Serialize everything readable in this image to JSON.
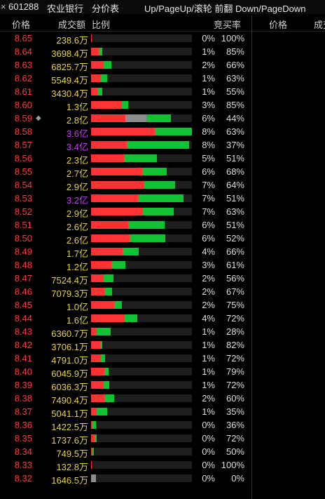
{
  "titlebar": {
    "close_icon": "×",
    "code": "601288",
    "name": "农业银行",
    "tab": "分价表",
    "hint": "Up/PageUp/滚轮 前翻 Down/PageDown"
  },
  "header": {
    "price": "价格",
    "volume": "成交额",
    "ratio": "比例",
    "bid_ratio": "竞买率",
    "price2": "价格",
    "volume2": "成交"
  },
  "colors": {
    "price": "#ff3b3b",
    "volume": "#e6d24a",
    "volume_highlight": "#c83cff",
    "buy_bar": "#ff3333",
    "sell_bar": "#10c234",
    "neutral_bar": "#8c8c8c"
  },
  "rows": [
    {
      "price": "8.65",
      "volume": "238.6万",
      "pct": "0%",
      "bid": "100%",
      "red": 0.5,
      "gray": 0,
      "green": 0,
      "hi": false,
      "marker": ""
    },
    {
      "price": "8.64",
      "volume": "3698.4万",
      "pct": "1%",
      "bid": "85%",
      "red": 11,
      "gray": 0,
      "green": 5,
      "hi": false,
      "marker": ""
    },
    {
      "price": "8.63",
      "volume": "6825.7万",
      "pct": "2%",
      "bid": "66%",
      "red": 18,
      "gray": 0,
      "green": 11,
      "hi": false,
      "marker": ""
    },
    {
      "price": "8.62",
      "volume": "5549.4万",
      "pct": "1%",
      "bid": "63%",
      "red": 14,
      "gray": 0,
      "green": 9,
      "hi": false,
      "marker": ""
    },
    {
      "price": "8.61",
      "volume": "3430.4万",
      "pct": "1%",
      "bid": "55%",
      "red": 9,
      "gray": 0,
      "green": 7,
      "hi": false,
      "marker": ""
    },
    {
      "price": "8.60",
      "volume": "1.3亿",
      "pct": "3%",
      "bid": "85%",
      "red": 44,
      "gray": 0,
      "green": 9,
      "hi": false,
      "marker": ""
    },
    {
      "price": "8.59",
      "volume": "2.8亿",
      "pct": "6%",
      "bid": "44%",
      "red": 49,
      "gray": 30,
      "green": 35,
      "hi": false,
      "marker": "◆"
    },
    {
      "price": "8.58",
      "volume": "3.6亿",
      "pct": "8%",
      "bid": "63%",
      "red": 91,
      "gray": 0,
      "green": 53,
      "hi": true,
      "marker": ""
    },
    {
      "price": "8.57",
      "volume": "3.4亿",
      "pct": "8%",
      "bid": "37%",
      "red": 51,
      "gray": 0,
      "green": 89,
      "hi": true,
      "marker": ""
    },
    {
      "price": "8.56",
      "volume": "2.3亿",
      "pct": "5%",
      "bid": "51%",
      "red": 47,
      "gray": 0,
      "green": 47,
      "hi": false,
      "marker": ""
    },
    {
      "price": "8.55",
      "volume": "2.7亿",
      "pct": "6%",
      "bid": "68%",
      "red": 73,
      "gray": 0,
      "green": 35,
      "hi": false,
      "marker": ""
    },
    {
      "price": "8.54",
      "volume": "2.9亿",
      "pct": "7%",
      "bid": "64%",
      "red": 76,
      "gray": 0,
      "green": 44,
      "hi": false,
      "marker": ""
    },
    {
      "price": "8.53",
      "volume": "3.2亿",
      "pct": "7%",
      "bid": "51%",
      "red": 67,
      "gray": 0,
      "green": 65,
      "hi": true,
      "marker": ""
    },
    {
      "price": "8.52",
      "volume": "2.9亿",
      "pct": "7%",
      "bid": "63%",
      "red": 74,
      "gray": 0,
      "green": 44,
      "hi": false,
      "marker": ""
    },
    {
      "price": "8.51",
      "volume": "2.6亿",
      "pct": "6%",
      "bid": "51%",
      "red": 53,
      "gray": 0,
      "green": 52,
      "hi": false,
      "marker": ""
    },
    {
      "price": "8.50",
      "volume": "2.6亿",
      "pct": "6%",
      "bid": "52%",
      "red": 55,
      "gray": 0,
      "green": 51,
      "hi": false,
      "marker": ""
    },
    {
      "price": "8.49",
      "volume": "1.7亿",
      "pct": "4%",
      "bid": "66%",
      "red": 45,
      "gray": 0,
      "green": 23,
      "hi": false,
      "marker": ""
    },
    {
      "price": "8.48",
      "volume": "1.2亿",
      "pct": "3%",
      "bid": "61%",
      "red": 29,
      "gray": 0,
      "green": 20,
      "hi": false,
      "marker": ""
    },
    {
      "price": "8.47",
      "volume": "7524.4万",
      "pct": "2%",
      "bid": "56%",
      "red": 18,
      "gray": 0,
      "green": 14,
      "hi": false,
      "marker": ""
    },
    {
      "price": "8.46",
      "volume": "7079.3万",
      "pct": "2%",
      "bid": "67%",
      "red": 20,
      "gray": 0,
      "green": 10,
      "hi": false,
      "marker": ""
    },
    {
      "price": "8.45",
      "volume": "1.0亿",
      "pct": "2%",
      "bid": "75%",
      "red": 33,
      "gray": 0,
      "green": 11,
      "hi": false,
      "marker": ""
    },
    {
      "price": "8.44",
      "volume": "1.6亿",
      "pct": "4%",
      "bid": "72%",
      "red": 48,
      "gray": 0,
      "green": 18,
      "hi": false,
      "marker": ""
    },
    {
      "price": "8.43",
      "volume": "6360.7万",
      "pct": "1%",
      "bid": "28%",
      "red": 8,
      "gray": 0,
      "green": 20,
      "hi": false,
      "marker": ""
    },
    {
      "price": "8.42",
      "volume": "3706.1万",
      "pct": "1%",
      "bid": "82%",
      "red": 13,
      "gray": 0,
      "green": 3,
      "hi": false,
      "marker": ""
    },
    {
      "price": "8.41",
      "volume": "4791.0万",
      "pct": "1%",
      "bid": "72%",
      "red": 14,
      "gray": 0,
      "green": 6,
      "hi": false,
      "marker": ""
    },
    {
      "price": "8.40",
      "volume": "6045.9万",
      "pct": "1%",
      "bid": "79%",
      "red": 19,
      "gray": 0,
      "green": 6,
      "hi": false,
      "marker": ""
    },
    {
      "price": "8.39",
      "volume": "6036.3万",
      "pct": "1%",
      "bid": "72%",
      "red": 18,
      "gray": 0,
      "green": 8,
      "hi": false,
      "marker": ""
    },
    {
      "price": "8.38",
      "volume": "7490.4万",
      "pct": "2%",
      "bid": "60%",
      "red": 20,
      "gray": 0,
      "green": 13,
      "hi": false,
      "marker": ""
    },
    {
      "price": "8.37",
      "volume": "5041.1万",
      "pct": "1%",
      "bid": "35%",
      "red": 8,
      "gray": 0,
      "green": 15,
      "hi": false,
      "marker": ""
    },
    {
      "price": "8.36",
      "volume": "1422.5万",
      "pct": "0%",
      "bid": "36%",
      "red": 2,
      "gray": 0,
      "green": 5,
      "hi": false,
      "marker": ""
    },
    {
      "price": "8.35",
      "volume": "1737.6万",
      "pct": "0%",
      "bid": "72%",
      "red": 5,
      "gray": 0,
      "green": 3,
      "hi": false,
      "marker": ""
    },
    {
      "price": "8.34",
      "volume": "749.5万",
      "pct": "0%",
      "bid": "50%",
      "red": 2,
      "gray": 0,
      "green": 2,
      "hi": false,
      "marker": ""
    },
    {
      "price": "8.33",
      "volume": "132.8万",
      "pct": "0%",
      "bid": "100%",
      "red": 1,
      "gray": 0,
      "green": 0,
      "hi": false,
      "marker": ""
    },
    {
      "price": "8.32",
      "volume": "1646.5万",
      "pct": "0%",
      "bid": "0%",
      "red": 0,
      "gray": 7,
      "green": 0,
      "hi": false,
      "marker": ""
    }
  ]
}
